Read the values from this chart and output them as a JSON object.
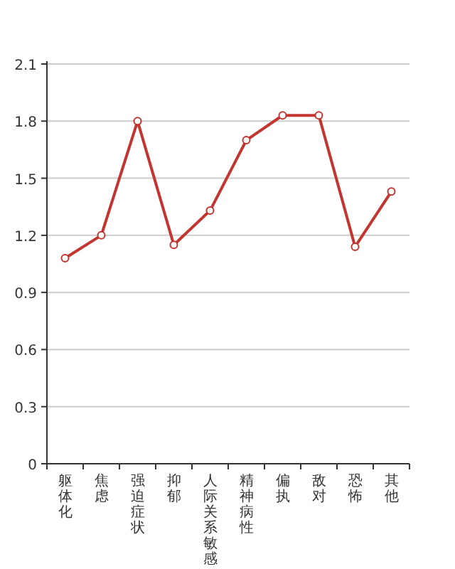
{
  "chart_data": {
    "type": "line",
    "categories": [
      "躯体化",
      "焦虑",
      "强迫症状",
      "抑郁",
      "人际关系敏感",
      "精神病性",
      "偏执",
      "敌对",
      "恐怖",
      "其他"
    ],
    "series": [
      {
        "color": "#c23531",
        "values": [
          1.08,
          1.2,
          1.8,
          1.15,
          1.33,
          1.7,
          1.83,
          1.83,
          1.14,
          1.43
        ]
      }
    ],
    "ylim": [
      0,
      2.1
    ],
    "yticks": [
      0,
      0.3,
      0.6,
      0.9,
      1.2,
      1.5,
      1.8,
      2.1
    ],
    "grid": "y",
    "marker": "circle",
    "line_style": "solid"
  }
}
